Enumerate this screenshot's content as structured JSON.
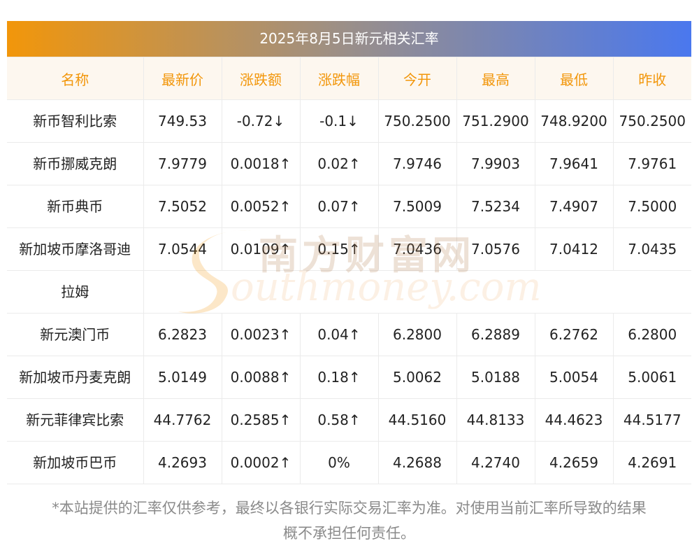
{
  "title": "2025年8月5日新元相关汇率",
  "headers": [
    "名称",
    "最新价",
    "涨跌额",
    "涨跌幅",
    "今开",
    "最高",
    "最低",
    "昨收"
  ],
  "rows": [
    {
      "name": "新币智利比索",
      "latest": "749.53",
      "change": "-0.72↓",
      "pct": "-0.1↓",
      "open": "750.2500",
      "high": "751.2900",
      "low": "748.9200",
      "prev": "750.2500",
      "dir": "down"
    },
    {
      "name": "新币挪威克朗",
      "latest": "7.9779",
      "change": "0.0018↑",
      "pct": "0.02↑",
      "open": "7.9746",
      "high": "7.9903",
      "low": "7.9641",
      "prev": "7.9761",
      "dir": "up"
    },
    {
      "name": "新币典币",
      "latest": "7.5052",
      "change": "0.0052↑",
      "pct": "0.07↑",
      "open": "7.5009",
      "high": "7.5234",
      "low": "7.4907",
      "prev": "7.5000",
      "dir": "up"
    },
    {
      "name_line1": "新加坡币摩洛哥迪",
      "name_line2": "拉姆",
      "latest": "7.0544",
      "change": "0.0109↑",
      "pct": "0.15↑",
      "open": "7.0436",
      "high": "7.0576",
      "low": "7.0412",
      "prev": "7.0435",
      "dir": "up"
    },
    {
      "name": "新元澳门币",
      "latest": "6.2823",
      "change": "0.0023↑",
      "pct": "0.04↑",
      "open": "6.2800",
      "high": "6.2889",
      "low": "6.2762",
      "prev": "6.2800",
      "dir": "up"
    },
    {
      "name": "新加坡币丹麦克朗",
      "latest": "5.0149",
      "change": "0.0088↑",
      "pct": "0.18↑",
      "open": "5.0062",
      "high": "5.0188",
      "low": "5.0054",
      "prev": "5.0061",
      "dir": "up"
    },
    {
      "name": "新元菲律宾比索",
      "latest": "44.7762",
      "change": "0.2585↑",
      "pct": "0.58↑",
      "open": "44.5160",
      "high": "44.8133",
      "low": "44.4623",
      "prev": "44.5177",
      "dir": "up"
    },
    {
      "name": "新加坡币巴币",
      "latest": "4.2693",
      "change": "0.0002↑",
      "pct": "0%",
      "open": "4.2688",
      "high": "4.2740",
      "low": "4.2659",
      "prev": "4.2691",
      "dir": "up_flat"
    }
  ],
  "watermark": {
    "cn": "南方财富网",
    "en": "outhmoney.com"
  },
  "disclaimer_line1": "*本站提供的汇率仅供参考，最终以各银行实际交易汇率为准。对使用当前汇率所导致的结果",
  "disclaimer_line2": "概不承担任何责任。",
  "colors": {
    "up": "#e8160c",
    "down": "#1a8a1a",
    "header_text": "#f2960a",
    "header_bg": "#fdf7ef"
  }
}
